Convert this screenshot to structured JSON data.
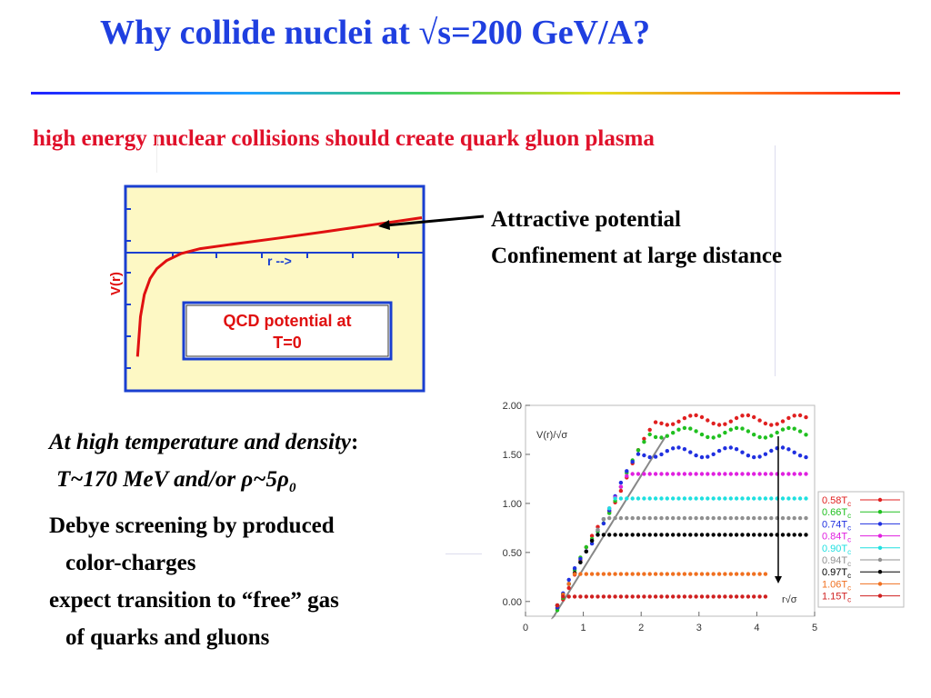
{
  "slide": {
    "title": "Why collide nuclei at √s=200 GeV/A?",
    "subtitle": "high energy nuclear collisions should create quark gluon plasma",
    "annotation_line1": "Attractive potential",
    "annotation_line2": "Confinement at large distance",
    "hot_line1_italic": "At high temperature and density",
    "hot_line1_colon": ":",
    "hot_line2_T": "T~170 MeV and/or ",
    "hot_line2_rho1": "ρ",
    "hot_line2_mid": "~5",
    "hot_line2_rho2": "ρ",
    "hot_line2_sub": "0",
    "hot_line3": "Debye screening by produced",
    "hot_line4": "color-charges",
    "hot_line5": "expect transition to “free” gas",
    "hot_line6": "of quarks and gluons",
    "colors": {
      "title": "#1f3fe0",
      "subtitle": "#e0102a",
      "qcd_panel_bg": "#fdf8c4",
      "qcd_frame": "#1a3fd0",
      "qcd_curve": "#e01010"
    }
  },
  "chart_data": [
    {
      "type": "line",
      "title": "",
      "xlabel": "r -->",
      "ylabel": "V(r)",
      "grid": false,
      "legend": "none",
      "inset_label": "QCD potential at\nT=0",
      "series": [
        {
          "x": [
            0.05,
            0.08,
            0.12,
            0.18,
            0.25,
            0.35,
            0.5,
            0.7,
            1.0,
            1.5,
            2.0,
            2.5,
            3.0
          ],
          "values": [
            -5.2,
            -3.2,
            -2.1,
            -1.3,
            -0.8,
            -0.4,
            -0.05,
            0.2,
            0.4,
            0.72,
            1.05,
            1.4,
            1.75
          ]
        }
      ]
    },
    {
      "type": "scatter",
      "title": "",
      "xlabel": "r√σ",
      "ylabel": "V(r)/√σ",
      "xlim": [
        0,
        5
      ],
      "ylim": [
        -0.15,
        2.0
      ],
      "xticks": [
        "0",
        "1",
        "2",
        "3",
        "4",
        "5"
      ],
      "yticks": [
        "0.00",
        "0.50",
        "1.00",
        "1.50",
        "2.00"
      ],
      "legend": "right",
      "series": [
        {
          "name": "0.58T",
          "sub": "c",
          "color": "#e02020",
          "plateau": 1.85
        },
        {
          "name": "0.66T",
          "sub": "c",
          "color": "#20c020",
          "plateau": 1.72
        },
        {
          "name": "0.74T",
          "sub": "c",
          "color": "#2030e0",
          "plateau": 1.52
        },
        {
          "name": "0.84T",
          "sub": "c",
          "color": "#e020e0",
          "plateau": 1.3
        },
        {
          "name": "0.90T",
          "sub": "c",
          "color": "#20e0e0",
          "plateau": 1.05
        },
        {
          "name": "0.94T",
          "sub": "c",
          "color": "#909090",
          "plateau": 0.85
        },
        {
          "name": "0.97T",
          "sub": "c",
          "color": "#000000",
          "plateau": 0.68
        },
        {
          "name": "1.06T",
          "sub": "c",
          "color": "#f07020",
          "plateau": 0.28
        },
        {
          "name": "1.15T",
          "sub": "c",
          "color": "#d02020",
          "plateau": 0.05
        }
      ]
    }
  ]
}
